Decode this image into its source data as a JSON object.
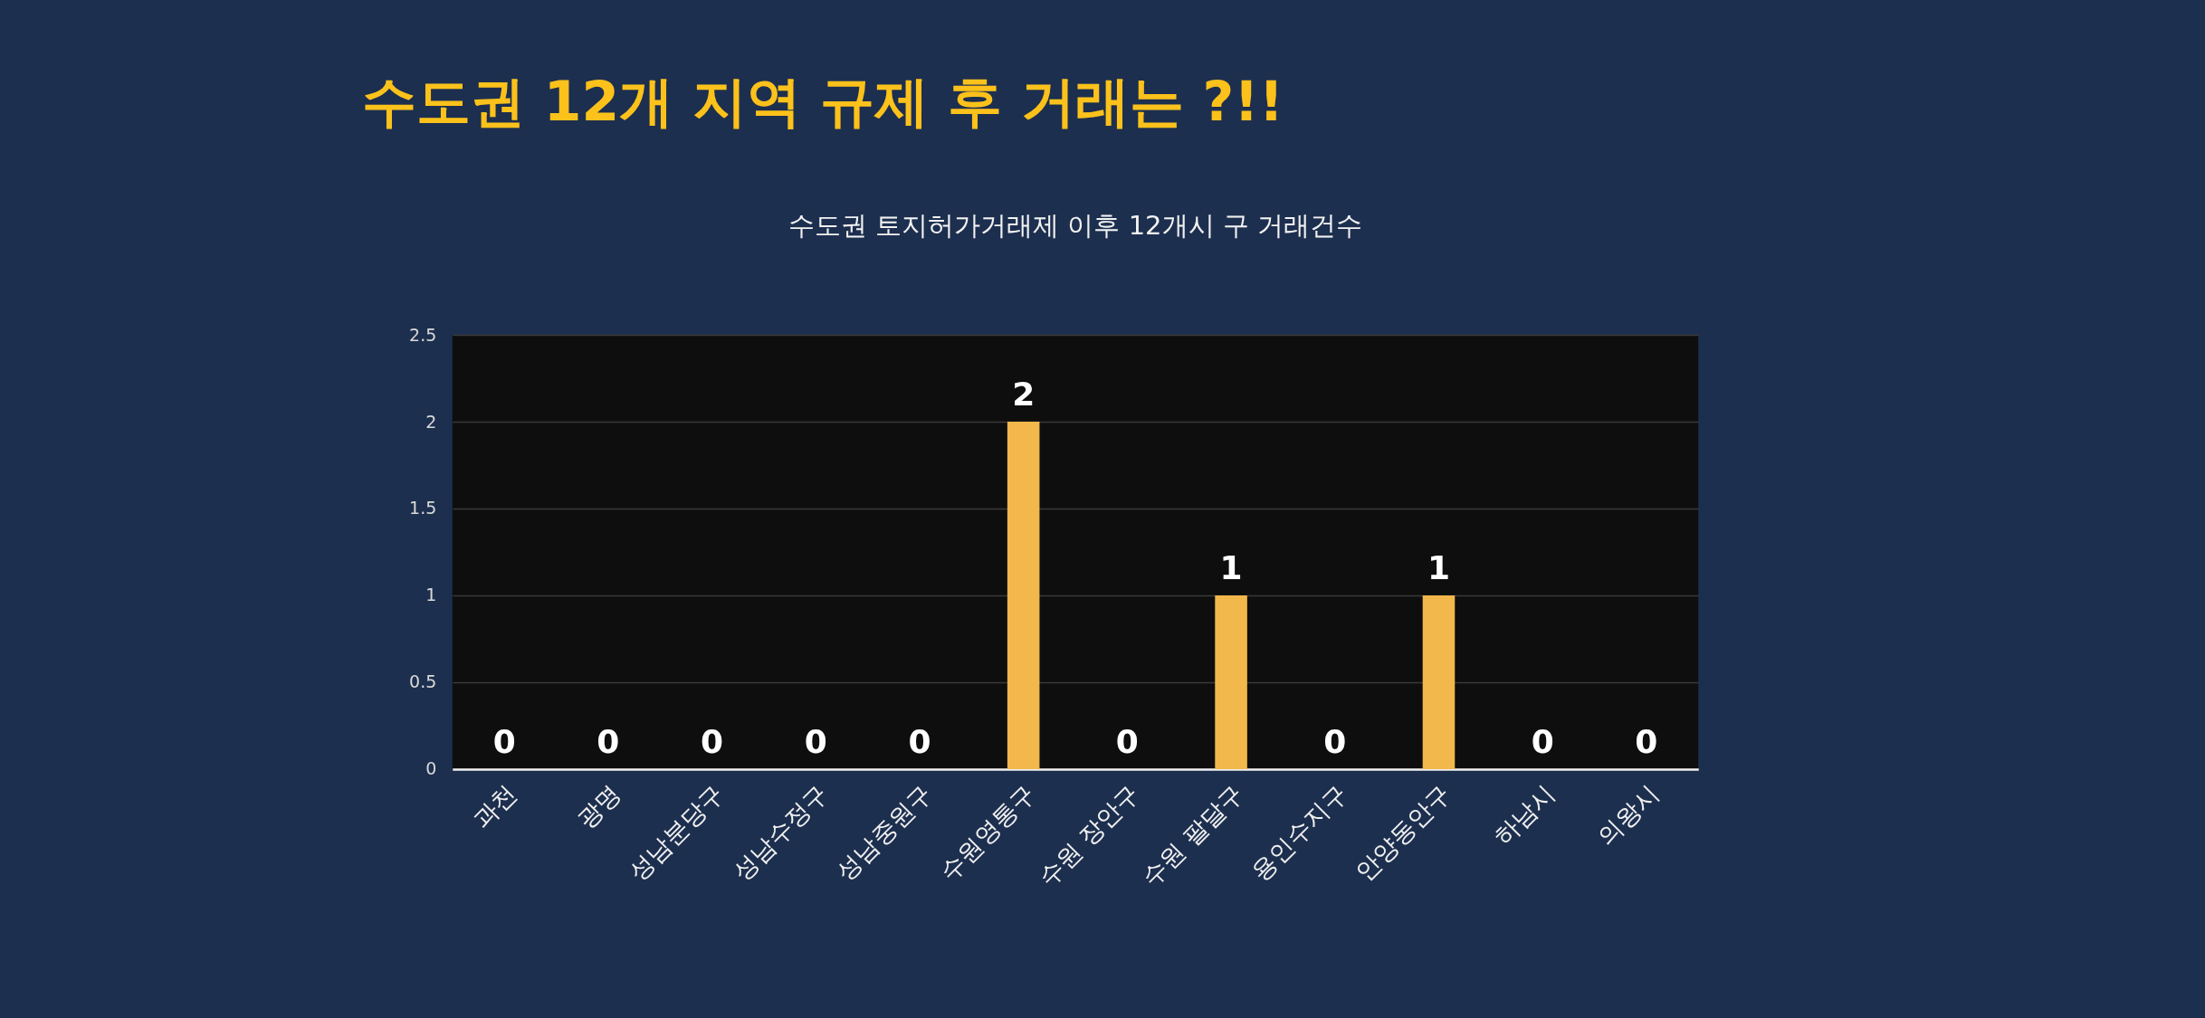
{
  "chart_data": {
    "type": "bar",
    "title": "수도권 12개 지역 규제 후 거래는 ?!!",
    "subtitle": "수도권 토지허가거래제 이후 12개시 구 거래건수",
    "categories": [
      "과천",
      "광명",
      "성남분당구",
      "성남수정구",
      "성남중원구",
      "수원영통구",
      "수원 장안구",
      "수원 팔달구",
      "용인수지구",
      "안양동안구",
      "하남시",
      "의왕시"
    ],
    "values": [
      0,
      0,
      0,
      0,
      0,
      2,
      0,
      1,
      0,
      1,
      0,
      0
    ],
    "color": "#f2b84b",
    "ylim": [
      0,
      2.5
    ],
    "yticks": [
      0,
      0.5,
      1,
      1.5,
      2,
      2.5
    ],
    "grid": "y",
    "data_labels": true
  }
}
